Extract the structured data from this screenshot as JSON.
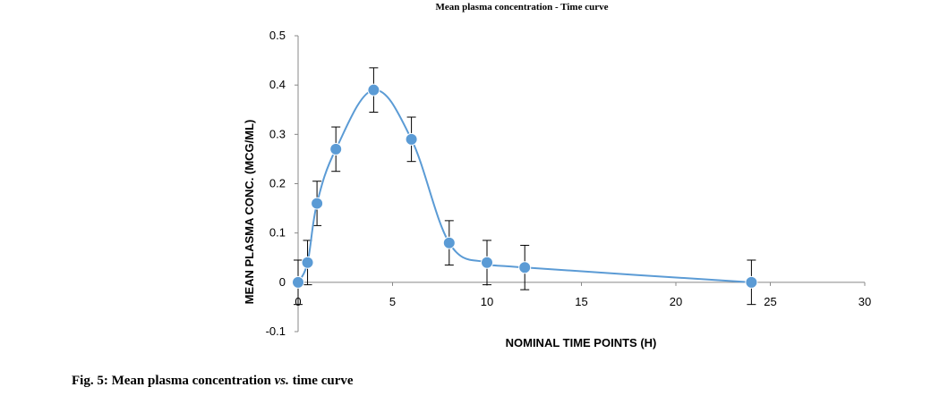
{
  "chart_data": {
    "type": "line",
    "title": "Mean plasma concentration - Time curve",
    "xlabel": "NOMINAL TIME POINTS (H)",
    "ylabel": "MEAN PLASMA CONC. (MCG/ML)",
    "xlim": [
      0,
      30
    ],
    "ylim": [
      -0.1,
      0.5
    ],
    "x_ticks": [
      "0",
      "5",
      "10",
      "15",
      "20",
      "25",
      "30"
    ],
    "y_ticks": [
      "-0.1",
      "0",
      "0.1",
      "0.2",
      "0.3",
      "0.4",
      "0.5"
    ],
    "grid": false,
    "series": [
      {
        "x": [
          0,
          0.5,
          1,
          2,
          4,
          6,
          8,
          10,
          12,
          24
        ],
        "y": [
          0,
          0.04,
          0.16,
          0.27,
          0.39,
          0.29,
          0.08,
          0.04,
          0.03,
          0
        ],
        "error": [
          0.045,
          0.045,
          0.045,
          0.045,
          0.045,
          0.045,
          0.045,
          0.045,
          0.045,
          0.045
        ]
      }
    ],
    "line_color": "#5b9bd5",
    "marker_color": "#5b9bd5"
  },
  "figure_caption": {
    "prefix": "Fig. 5: Mean plasma concentration ",
    "vs": "vs.",
    "suffix": " time curve"
  }
}
